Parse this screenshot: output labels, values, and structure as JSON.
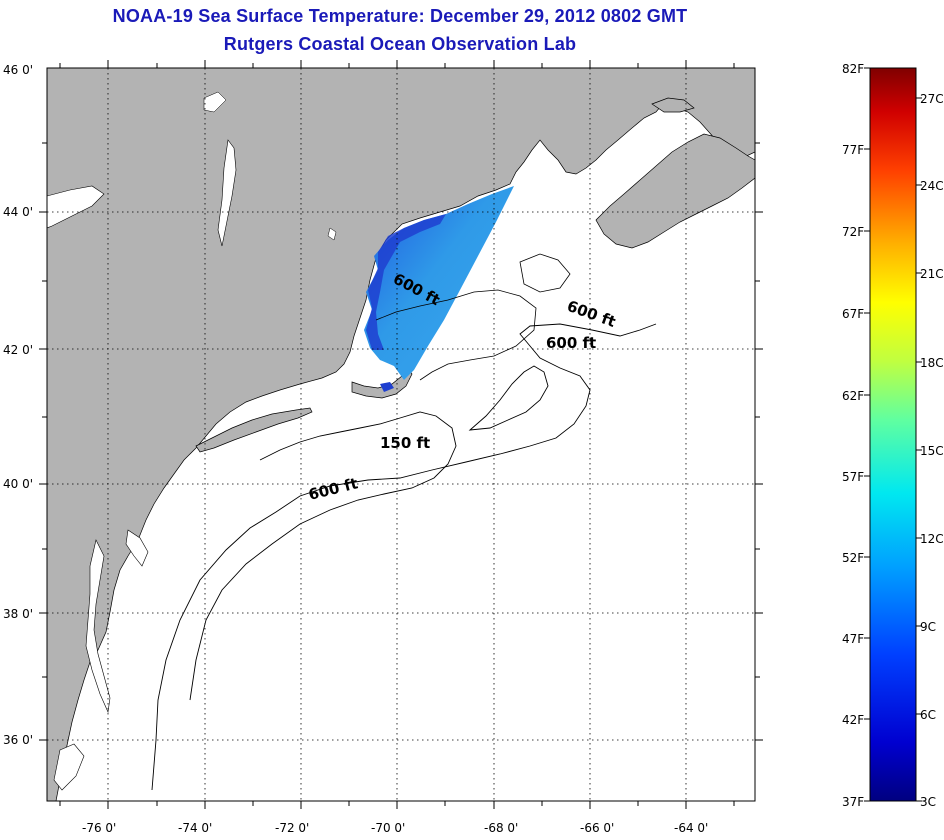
{
  "title": {
    "line1": "NOAA-19 Sea Surface Temperature:  December 29, 2012 0802 GMT",
    "line2": "Rutgers Coastal Ocean Observation Lab"
  },
  "map": {
    "lon_ticks": [
      "-76 0'",
      "-74 0'",
      "-72 0'",
      "-70 0'",
      "-68 0'",
      "-66 0'",
      "-64 0'"
    ],
    "lat_ticks": [
      "46 0'",
      "44 0'",
      "42 0'",
      "40 0'",
      "38 0'",
      "36 0'"
    ],
    "contour_labels": [
      {
        "text": "600 ft",
        "where": "gulf-of-maine"
      },
      {
        "text": "600 ft",
        "where": "northeast-channel"
      },
      {
        "text": "600 ft",
        "where": "georges-bank"
      },
      {
        "text": "150 ft",
        "where": "nantucket-shoals"
      },
      {
        "text": "600 ft",
        "where": "shelf-break"
      }
    ],
    "colors": {
      "land": "#b3b3b3",
      "ocean": "#ffffff",
      "sst_warm": "#2f9ae8",
      "sst_cool": "#1e3fd0"
    }
  },
  "colorbar": {
    "fahrenheit": [
      "82F",
      "77F",
      "72F",
      "67F",
      "62F",
      "57F",
      "52F",
      "47F",
      "42F",
      "37F"
    ],
    "celsius": [
      "27C",
      "24C",
      "21C",
      "18C",
      "15C",
      "12C",
      "9C",
      "6C",
      "3C"
    ],
    "colors": [
      "#800000",
      "#e00000",
      "#ff6a00",
      "#ffd200",
      "#b4ff4a",
      "#38ffc4",
      "#00b2ff",
      "#0048ff",
      "#0000c8",
      "#000080"
    ]
  }
}
